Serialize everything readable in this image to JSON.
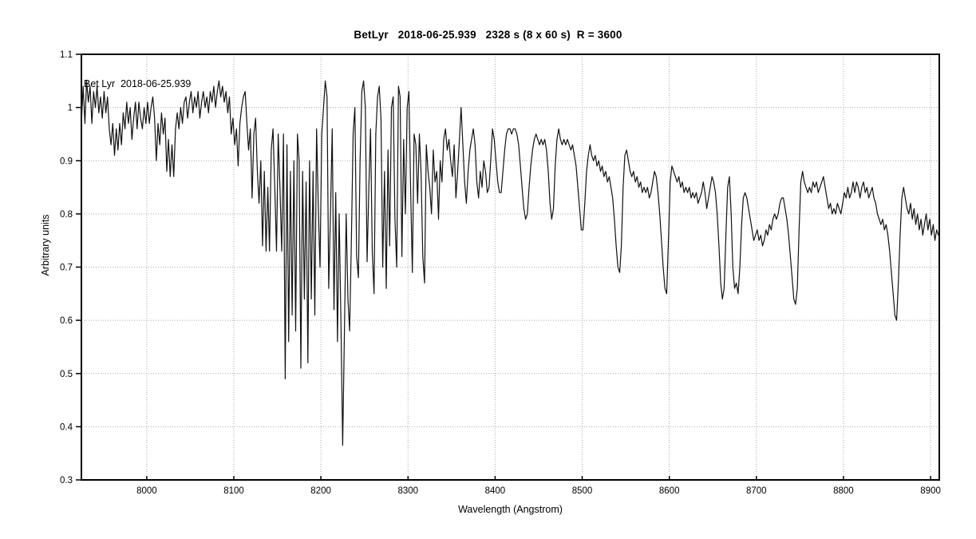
{
  "page": {
    "background": "#ffffff",
    "text_color": "#000000"
  },
  "chart_data": {
    "type": "line",
    "title": "BetLyr   2018-06-25.939   2328 s (8 x 60 s)  R = 3600",
    "xlabel": "Wavelength (Angstrom)",
    "ylabel": "Arbitrary units",
    "xlim": [
      7925,
      8910
    ],
    "ylim": [
      0.3,
      1.1
    ],
    "x_ticks": [
      8000,
      8100,
      8200,
      8300,
      8400,
      8500,
      8600,
      8700,
      8800,
      8900
    ],
    "y_ticks": [
      1.1,
      1,
      0.9,
      0.8,
      0.7,
      0.6,
      0.5,
      0.4,
      0.3
    ],
    "grid": "dotted",
    "grid_color": "#aaaaaa",
    "frame_color": "#000000",
    "line_color": "#111111",
    "legend_position": "none",
    "annotation": {
      "text": "Bet Lyr  2018-06-25.939",
      "x": 7930,
      "y": 1.035
    },
    "series": [
      {
        "name": "Bet Lyr 2018-06-25.939",
        "x_start": 7925,
        "x_step": 2,
        "y": [
          0.97,
          1.04,
          0.97,
          1.05,
          1.01,
          1.04,
          0.97,
          1.03,
          1.0,
          1.04,
          0.99,
          1.02,
          0.98,
          1.03,
          0.99,
          1.02,
          0.96,
          0.93,
          0.97,
          0.91,
          0.96,
          0.92,
          0.97,
          0.93,
          0.99,
          0.96,
          1.01,
          0.97,
          1.0,
          0.94,
          0.98,
          1.01,
          0.96,
          1.01,
          0.98,
          0.96,
          1.0,
          0.97,
          1.01,
          0.97,
          1.0,
          1.02,
          0.98,
          0.9,
          0.97,
          0.93,
          0.99,
          0.95,
          0.98,
          0.88,
          0.94,
          0.87,
          0.93,
          0.87,
          0.96,
          0.99,
          0.96,
          1.0,
          0.97,
          1.01,
          1.02,
          0.98,
          1.01,
          1.03,
          0.99,
          1.02,
          1.0,
          1.03,
          0.98,
          1.01,
          1.03,
          1.0,
          1.02,
          0.99,
          1.03,
          1.01,
          1.04,
          1.0,
          1.03,
          1.05,
          1.02,
          1.04,
          1.01,
          1.03,
          0.99,
          1.02,
          0.95,
          0.98,
          0.93,
          0.96,
          0.89,
          0.97,
          1.0,
          1.02,
          1.03,
          0.97,
          0.92,
          0.96,
          0.83,
          0.95,
          0.98,
          0.88,
          0.82,
          0.9,
          0.74,
          0.88,
          0.73,
          0.85,
          0.73,
          0.92,
          0.96,
          0.85,
          0.73,
          0.95,
          0.85,
          0.73,
          0.95,
          0.49,
          0.93,
          0.56,
          0.88,
          0.61,
          0.9,
          0.58,
          0.95,
          0.9,
          0.51,
          0.88,
          0.64,
          0.86,
          0.52,
          0.9,
          0.64,
          0.88,
          0.61,
          0.96,
          0.81,
          0.7,
          0.95,
          1.0,
          1.05,
          1.02,
          0.66,
          0.8,
          0.96,
          0.62,
          0.84,
          0.56,
          0.8,
          0.6,
          0.365,
          0.58,
          0.8,
          0.64,
          0.58,
          0.75,
          0.95,
          1.0,
          0.72,
          0.68,
          0.9,
          1.03,
          1.05,
          1.0,
          0.71,
          0.85,
          0.96,
          0.73,
          0.65,
          0.95,
          1.02,
          1.04,
          0.98,
          0.7,
          0.88,
          0.66,
          0.92,
          0.74,
          1.0,
          1.02,
          0.79,
          0.7,
          1.04,
          1.02,
          0.72,
          0.94,
          0.8,
          1.0,
          1.03,
          0.85,
          0.69,
          0.95,
          0.93,
          0.82,
          0.95,
          0.88,
          0.72,
          0.67,
          0.93,
          0.88,
          0.85,
          0.8,
          0.92,
          0.86,
          0.88,
          0.79,
          0.9,
          0.86,
          0.94,
          0.96,
          0.92,
          0.94,
          0.9,
          0.87,
          0.93,
          0.83,
          0.88,
          0.94,
          1.0,
          0.93,
          0.86,
          0.82,
          0.88,
          0.92,
          0.94,
          0.96,
          0.93,
          0.86,
          0.83,
          0.88,
          0.85,
          0.9,
          0.88,
          0.84,
          0.85,
          0.9,
          0.96,
          0.94,
          0.9,
          0.86,
          0.84,
          0.84,
          0.88,
          0.92,
          0.95,
          0.96,
          0.96,
          0.95,
          0.96,
          0.96,
          0.95,
          0.93,
          0.89,
          0.85,
          0.81,
          0.79,
          0.8,
          0.85,
          0.89,
          0.92,
          0.94,
          0.95,
          0.94,
          0.93,
          0.94,
          0.93,
          0.94,
          0.92,
          0.88,
          0.82,
          0.79,
          0.81,
          0.89,
          0.94,
          0.96,
          0.94,
          0.93,
          0.94,
          0.93,
          0.94,
          0.93,
          0.92,
          0.93,
          0.91,
          0.89,
          0.85,
          0.81,
          0.77,
          0.77,
          0.82,
          0.88,
          0.91,
          0.93,
          0.91,
          0.9,
          0.91,
          0.89,
          0.9,
          0.88,
          0.89,
          0.87,
          0.88,
          0.86,
          0.87,
          0.85,
          0.83,
          0.79,
          0.74,
          0.7,
          0.69,
          0.74,
          0.85,
          0.91,
          0.92,
          0.9,
          0.88,
          0.87,
          0.88,
          0.86,
          0.87,
          0.85,
          0.86,
          0.84,
          0.85,
          0.84,
          0.85,
          0.83,
          0.84,
          0.86,
          0.88,
          0.87,
          0.84,
          0.8,
          0.75,
          0.7,
          0.66,
          0.65,
          0.75,
          0.86,
          0.89,
          0.88,
          0.87,
          0.86,
          0.87,
          0.85,
          0.86,
          0.84,
          0.85,
          0.84,
          0.85,
          0.83,
          0.84,
          0.83,
          0.84,
          0.82,
          0.83,
          0.84,
          0.86,
          0.84,
          0.81,
          0.83,
          0.85,
          0.87,
          0.86,
          0.84,
          0.8,
          0.74,
          0.67,
          0.64,
          0.66,
          0.76,
          0.85,
          0.87,
          0.8,
          0.7,
          0.66,
          0.67,
          0.65,
          0.7,
          0.78,
          0.83,
          0.84,
          0.83,
          0.81,
          0.79,
          0.77,
          0.75,
          0.76,
          0.77,
          0.75,
          0.76,
          0.74,
          0.75,
          0.77,
          0.76,
          0.78,
          0.77,
          0.79,
          0.8,
          0.79,
          0.8,
          0.82,
          0.83,
          0.83,
          0.81,
          0.79,
          0.76,
          0.72,
          0.68,
          0.64,
          0.63,
          0.66,
          0.77,
          0.86,
          0.88,
          0.86,
          0.85,
          0.84,
          0.85,
          0.84,
          0.86,
          0.85,
          0.86,
          0.84,
          0.85,
          0.86,
          0.87,
          0.85,
          0.83,
          0.81,
          0.82,
          0.8,
          0.81,
          0.8,
          0.82,
          0.81,
          0.8,
          0.82,
          0.84,
          0.83,
          0.85,
          0.83,
          0.84,
          0.86,
          0.84,
          0.86,
          0.85,
          0.83,
          0.85,
          0.86,
          0.84,
          0.85,
          0.83,
          0.84,
          0.85,
          0.83,
          0.82,
          0.8,
          0.79,
          0.78,
          0.79,
          0.77,
          0.78,
          0.76,
          0.73,
          0.69,
          0.65,
          0.61,
          0.6,
          0.67,
          0.76,
          0.83,
          0.85,
          0.83,
          0.81,
          0.8,
          0.82,
          0.79,
          0.81,
          0.78,
          0.8,
          0.77,
          0.79,
          0.76,
          0.78,
          0.8,
          0.77,
          0.79,
          0.76,
          0.78,
          0.75,
          0.77,
          0.76
        ]
      }
    ]
  }
}
